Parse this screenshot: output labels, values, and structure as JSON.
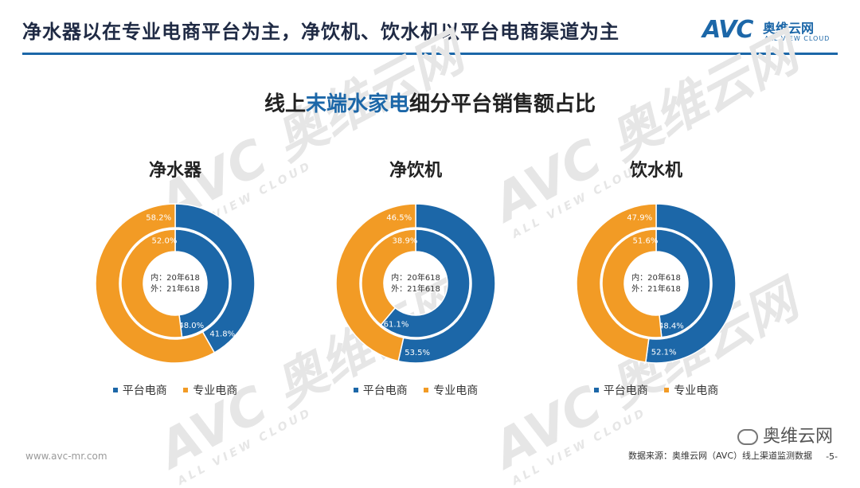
{
  "header": {
    "title": "净水器以在专业电商平台为主，净饮机、饮水机以平台电商渠道为主",
    "logo_mark": "AVC",
    "logo_cn": "奥维云网",
    "logo_en": "ALL VIEW CLOUD"
  },
  "main_title": {
    "prefix": "线上",
    "highlight": "末端水家电",
    "suffix": "细分平台销售额占比"
  },
  "watermark": {
    "mark": "AVC 奥维云网",
    "en": "ALL VIEW CLOUD"
  },
  "colors": {
    "platform": "#1c67a8",
    "professional": "#f29b25",
    "accent": "#1c67a8"
  },
  "chart_data": [
    {
      "type": "pie",
      "title": "净水器",
      "center_label_inner": "内：20年618",
      "center_label_outer": "外：21年618",
      "legend": [
        "平台电商",
        "专业电商"
      ],
      "inner": {
        "name": "20年618",
        "platform": 48.0,
        "professional": 52.0,
        "platform_label": "48.0%",
        "professional_label": "52.0%"
      },
      "outer": {
        "name": "21年618",
        "platform": 41.8,
        "professional": 58.2,
        "platform_label": "41.8%",
        "professional_label": "58.2%"
      }
    },
    {
      "type": "pie",
      "title": "净饮机",
      "center_label_inner": "内：20年618",
      "center_label_outer": "外：21年618",
      "legend": [
        "平台电商",
        "专业电商"
      ],
      "inner": {
        "name": "20年618",
        "platform": 61.1,
        "professional": 38.9,
        "platform_label": "61.1%",
        "professional_label": "38.9%"
      },
      "outer": {
        "name": "21年618",
        "platform": 53.5,
        "professional": 46.5,
        "platform_label": "53.5%",
        "professional_label": "46.5%"
      }
    },
    {
      "type": "pie",
      "title": "饮水机",
      "center_label_inner": "内：20年618",
      "center_label_outer": "外：21年618",
      "legend": [
        "平台电商",
        "专业电商"
      ],
      "inner": {
        "name": "20年618",
        "platform": 48.4,
        "professional": 51.6,
        "platform_label": "48.4%",
        "professional_label": "51.6%"
      },
      "outer": {
        "name": "21年618",
        "platform": 52.1,
        "professional": 47.9,
        "platform_label": "52.1%",
        "professional_label": "47.9%"
      }
    }
  ],
  "footer": {
    "url": "www.avc-mr.com",
    "source": "数据来源：奥维云网（AVC）线上渠道监测数据",
    "page": "-5-",
    "wechat": "奥维云网"
  }
}
